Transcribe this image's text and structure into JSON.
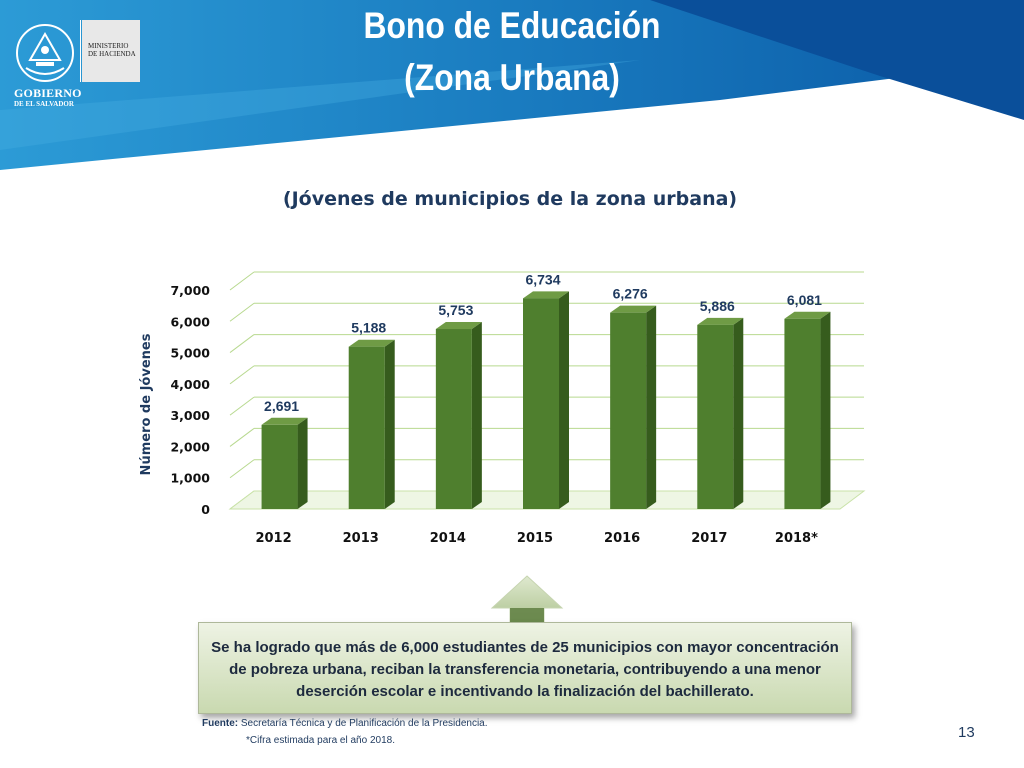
{
  "header": {
    "title_line1": "Bono de Educación",
    "title_line2": "(Zona Urbana)",
    "logo": {
      "ministry_line1": "MINISTERIO",
      "ministry_line2": "DE HACIENDA",
      "government_line1": "GOBIERNO",
      "government_line2": "DE EL SALVADOR"
    },
    "colors": {
      "dark_blue": "#0a4f9a",
      "mid_blue": "#1a7cc0",
      "light_blue": "#3fa8dd"
    }
  },
  "chart_data": {
    "type": "bar",
    "title": "(Jóvenes de municipios de la zona urbana)",
    "xlabel": "",
    "ylabel": "Número de Jóvenes",
    "categories": [
      "2012",
      "2013",
      "2014",
      "2015",
      "2016",
      "2017",
      "2018*"
    ],
    "values": [
      2691,
      5188,
      5753,
      6734,
      6276,
      5886,
      6081
    ],
    "value_labels": [
      "2,691",
      "5,188",
      "5,753",
      "6,734",
      "6,276",
      "5,886",
      "6,081"
    ],
    "y_ticks": [
      "0",
      "1,000",
      "2,000",
      "3,000",
      "4,000",
      "5,000",
      "6,000",
      "7,000"
    ],
    "ylim": [
      0,
      7000
    ],
    "grid": true,
    "style": "3d-column",
    "bar_color": "#4f7f2e"
  },
  "callout": {
    "text": "Se ha logrado que más de 6,000 estudiantes de 25 municipios con mayor concentración de pobreza urbana, reciban la transferencia monetaria, contribuyendo a una menor deserción escolar e incentivando la finalización del bachillerato."
  },
  "footer": {
    "source_label": "Fuente:",
    "source_text": "Secretaría Técnica y de Planificación de la Presidencia.",
    "note": "*Cifra estimada para el año 2018.",
    "page_number": "13"
  }
}
